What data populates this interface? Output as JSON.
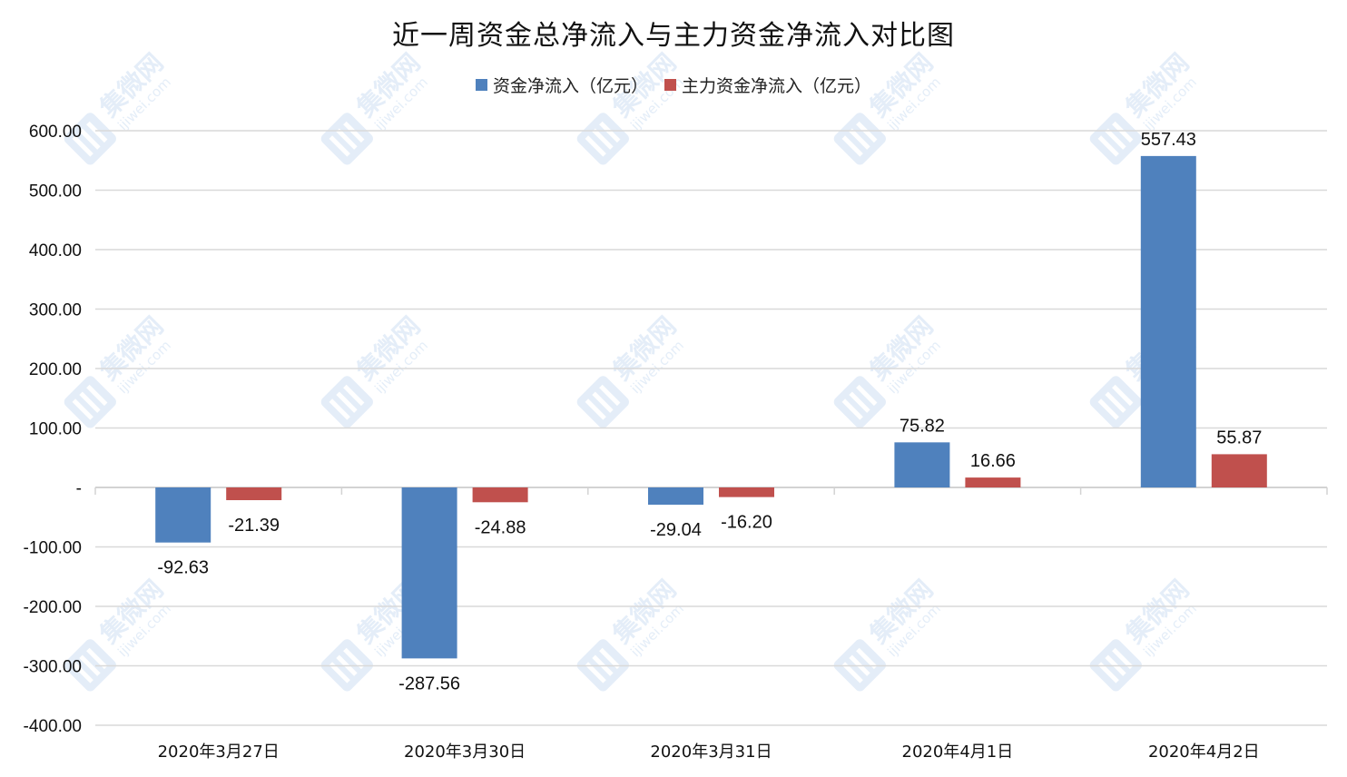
{
  "chart_data": {
    "type": "bar",
    "title": "近一周资金总净流入与主力资金净流入对比图",
    "categories": [
      "2020年3月27日",
      "2020年3月30日",
      "2020年3月31日",
      "2020年4月1日",
      "2020年4月2日"
    ],
    "series": [
      {
        "name": "资金净流入（亿元）",
        "color": "#4f81bd",
        "values": [
          -92.63,
          -287.56,
          -29.04,
          75.82,
          557.43
        ],
        "labels": [
          "-92.63",
          "-287.56",
          "-29.04",
          "75.82",
          "557.43"
        ]
      },
      {
        "name": "主力资金净流入（亿元）",
        "color": "#c0504d",
        "values": [
          -21.39,
          -24.88,
          -16.2,
          16.66,
          55.87
        ],
        "labels": [
          "-21.39",
          "-24.88",
          "-16.20",
          "16.66",
          "55.87"
        ]
      }
    ],
    "ylim": [
      -400,
      600
    ],
    "yticks": [
      600,
      500,
      400,
      300,
      200,
      100,
      0,
      -100,
      -200,
      -300,
      -400
    ],
    "ytick_labels": [
      "600.00",
      "500.00",
      "400.00",
      "300.00",
      "200.00",
      "100.00",
      "-",
      "-100.00",
      "-200.00",
      "-300.00",
      "-400.00"
    ],
    "grid": true,
    "legend_position": "top-center"
  },
  "watermark": {
    "brand": "集微网",
    "site": "ijiwei.com",
    "color": "#cfe0f3"
  }
}
